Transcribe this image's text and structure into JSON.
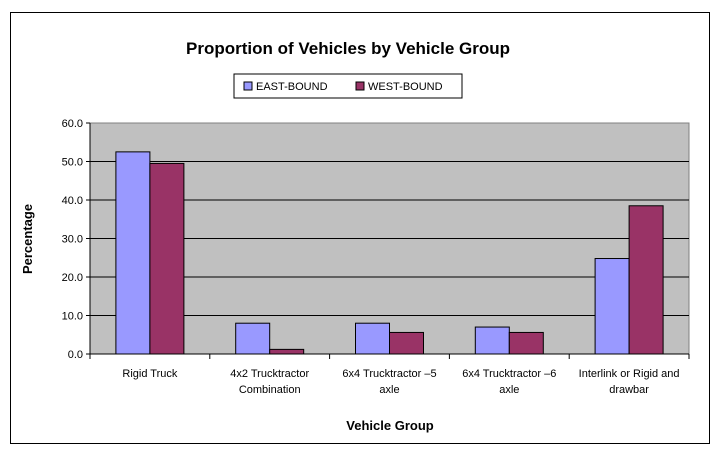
{
  "chart_data": {
    "type": "bar",
    "title": "Proportion of Vehicles by Vehicle Group",
    "xlabel": "Vehicle Group",
    "ylabel": "Percentage",
    "ylim": [
      0,
      60
    ],
    "yticks": [
      "0.0",
      "10.0",
      "20.0",
      "30.0",
      "40.0",
      "50.0",
      "60.0"
    ],
    "grid": true,
    "legend_position": "top",
    "categories": [
      [
        "Rigid Truck"
      ],
      [
        "4x2 Trucktractor",
        "Combination"
      ],
      [
        "6x4 Trucktractor –5",
        "axle"
      ],
      [
        "6x4 Trucktractor –6",
        "axle"
      ],
      [
        "Interlink or Rigid and",
        "drawbar"
      ]
    ],
    "series": [
      {
        "name": "EAST-BOUND",
        "color": "#9999ff",
        "values": [
          52.5,
          8.0,
          8.0,
          7.0,
          24.8
        ]
      },
      {
        "name": "WEST-BOUND",
        "color": "#993366",
        "values": [
          49.5,
          1.2,
          5.6,
          5.6,
          38.5
        ]
      }
    ],
    "plot_background": "#c0c0c0"
  }
}
